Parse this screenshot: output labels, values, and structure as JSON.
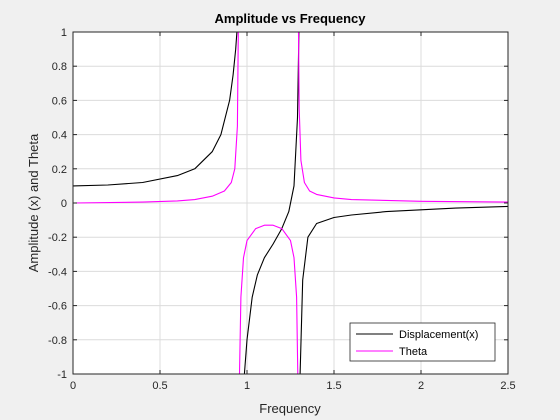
{
  "chart_data": {
    "type": "line",
    "title": "Amplitude vs Frequency",
    "xlabel": "Frequency",
    "ylabel": "Amplitude (x) and Theta",
    "xlim": [
      0,
      2.5
    ],
    "ylim": [
      -1,
      1
    ],
    "grid": true,
    "legend_location": "bottom-right",
    "x_ticks": [
      "0",
      "0.5",
      "1",
      "1.5",
      "2",
      "2.5"
    ],
    "y_ticks": [
      "-1",
      "-0.8",
      "-0.6",
      "-0.4",
      "-0.2",
      "0",
      "0.2",
      "0.4",
      "0.6",
      "0.8",
      "1"
    ],
    "series": [
      {
        "name": "Displacement(x)",
        "color": "#000000",
        "x": [
          0,
          0.2,
          0.4,
          0.6,
          0.7,
          0.8,
          0.85,
          0.9,
          0.92,
          0.935,
          0.942,
          null,
          0.985,
          1.0,
          1.03,
          1.06,
          1.1,
          1.15,
          1.2,
          1.24,
          1.27,
          1.29,
          1.298,
          null,
          1.305,
          1.32,
          1.35,
          1.4,
          1.5,
          1.6,
          1.8,
          2.0,
          2.2,
          2.5
        ],
        "y": [
          0.1,
          0.105,
          0.12,
          0.16,
          0.2,
          0.3,
          0.4,
          0.6,
          0.75,
          0.9,
          1.0,
          null,
          -1.0,
          -0.8,
          -0.55,
          -0.42,
          -0.32,
          -0.24,
          -0.15,
          -0.05,
          0.1,
          0.5,
          1.0,
          null,
          -1.0,
          -0.45,
          -0.2,
          -0.12,
          -0.085,
          -0.07,
          -0.05,
          -0.04,
          -0.03,
          -0.02
        ]
      },
      {
        "name": "Theta",
        "color": "#ff00ff",
        "x": [
          0,
          0.4,
          0.6,
          0.7,
          0.8,
          0.87,
          0.91,
          0.93,
          0.945,
          0.95,
          0.952,
          null,
          0.955,
          0.957,
          0.965,
          0.98,
          1.0,
          1.05,
          1.1,
          1.15,
          1.2,
          1.25,
          1.27,
          1.285,
          1.292,
          null,
          1.296,
          1.3,
          1.31,
          1.33,
          1.36,
          1.4,
          1.5,
          1.6,
          1.8,
          2.0,
          2.5
        ],
        "y": [
          0.0,
          0.005,
          0.012,
          0.02,
          0.04,
          0.07,
          0.12,
          0.2,
          0.45,
          1.0,
          1.0,
          null,
          -1.0,
          -1.0,
          -0.55,
          -0.32,
          -0.22,
          -0.15,
          -0.13,
          -0.13,
          -0.15,
          -0.22,
          -0.32,
          -0.55,
          -1.0,
          null,
          1.0,
          0.55,
          0.25,
          0.12,
          0.07,
          0.05,
          0.03,
          0.02,
          0.015,
          0.01,
          0.005
        ]
      }
    ]
  }
}
